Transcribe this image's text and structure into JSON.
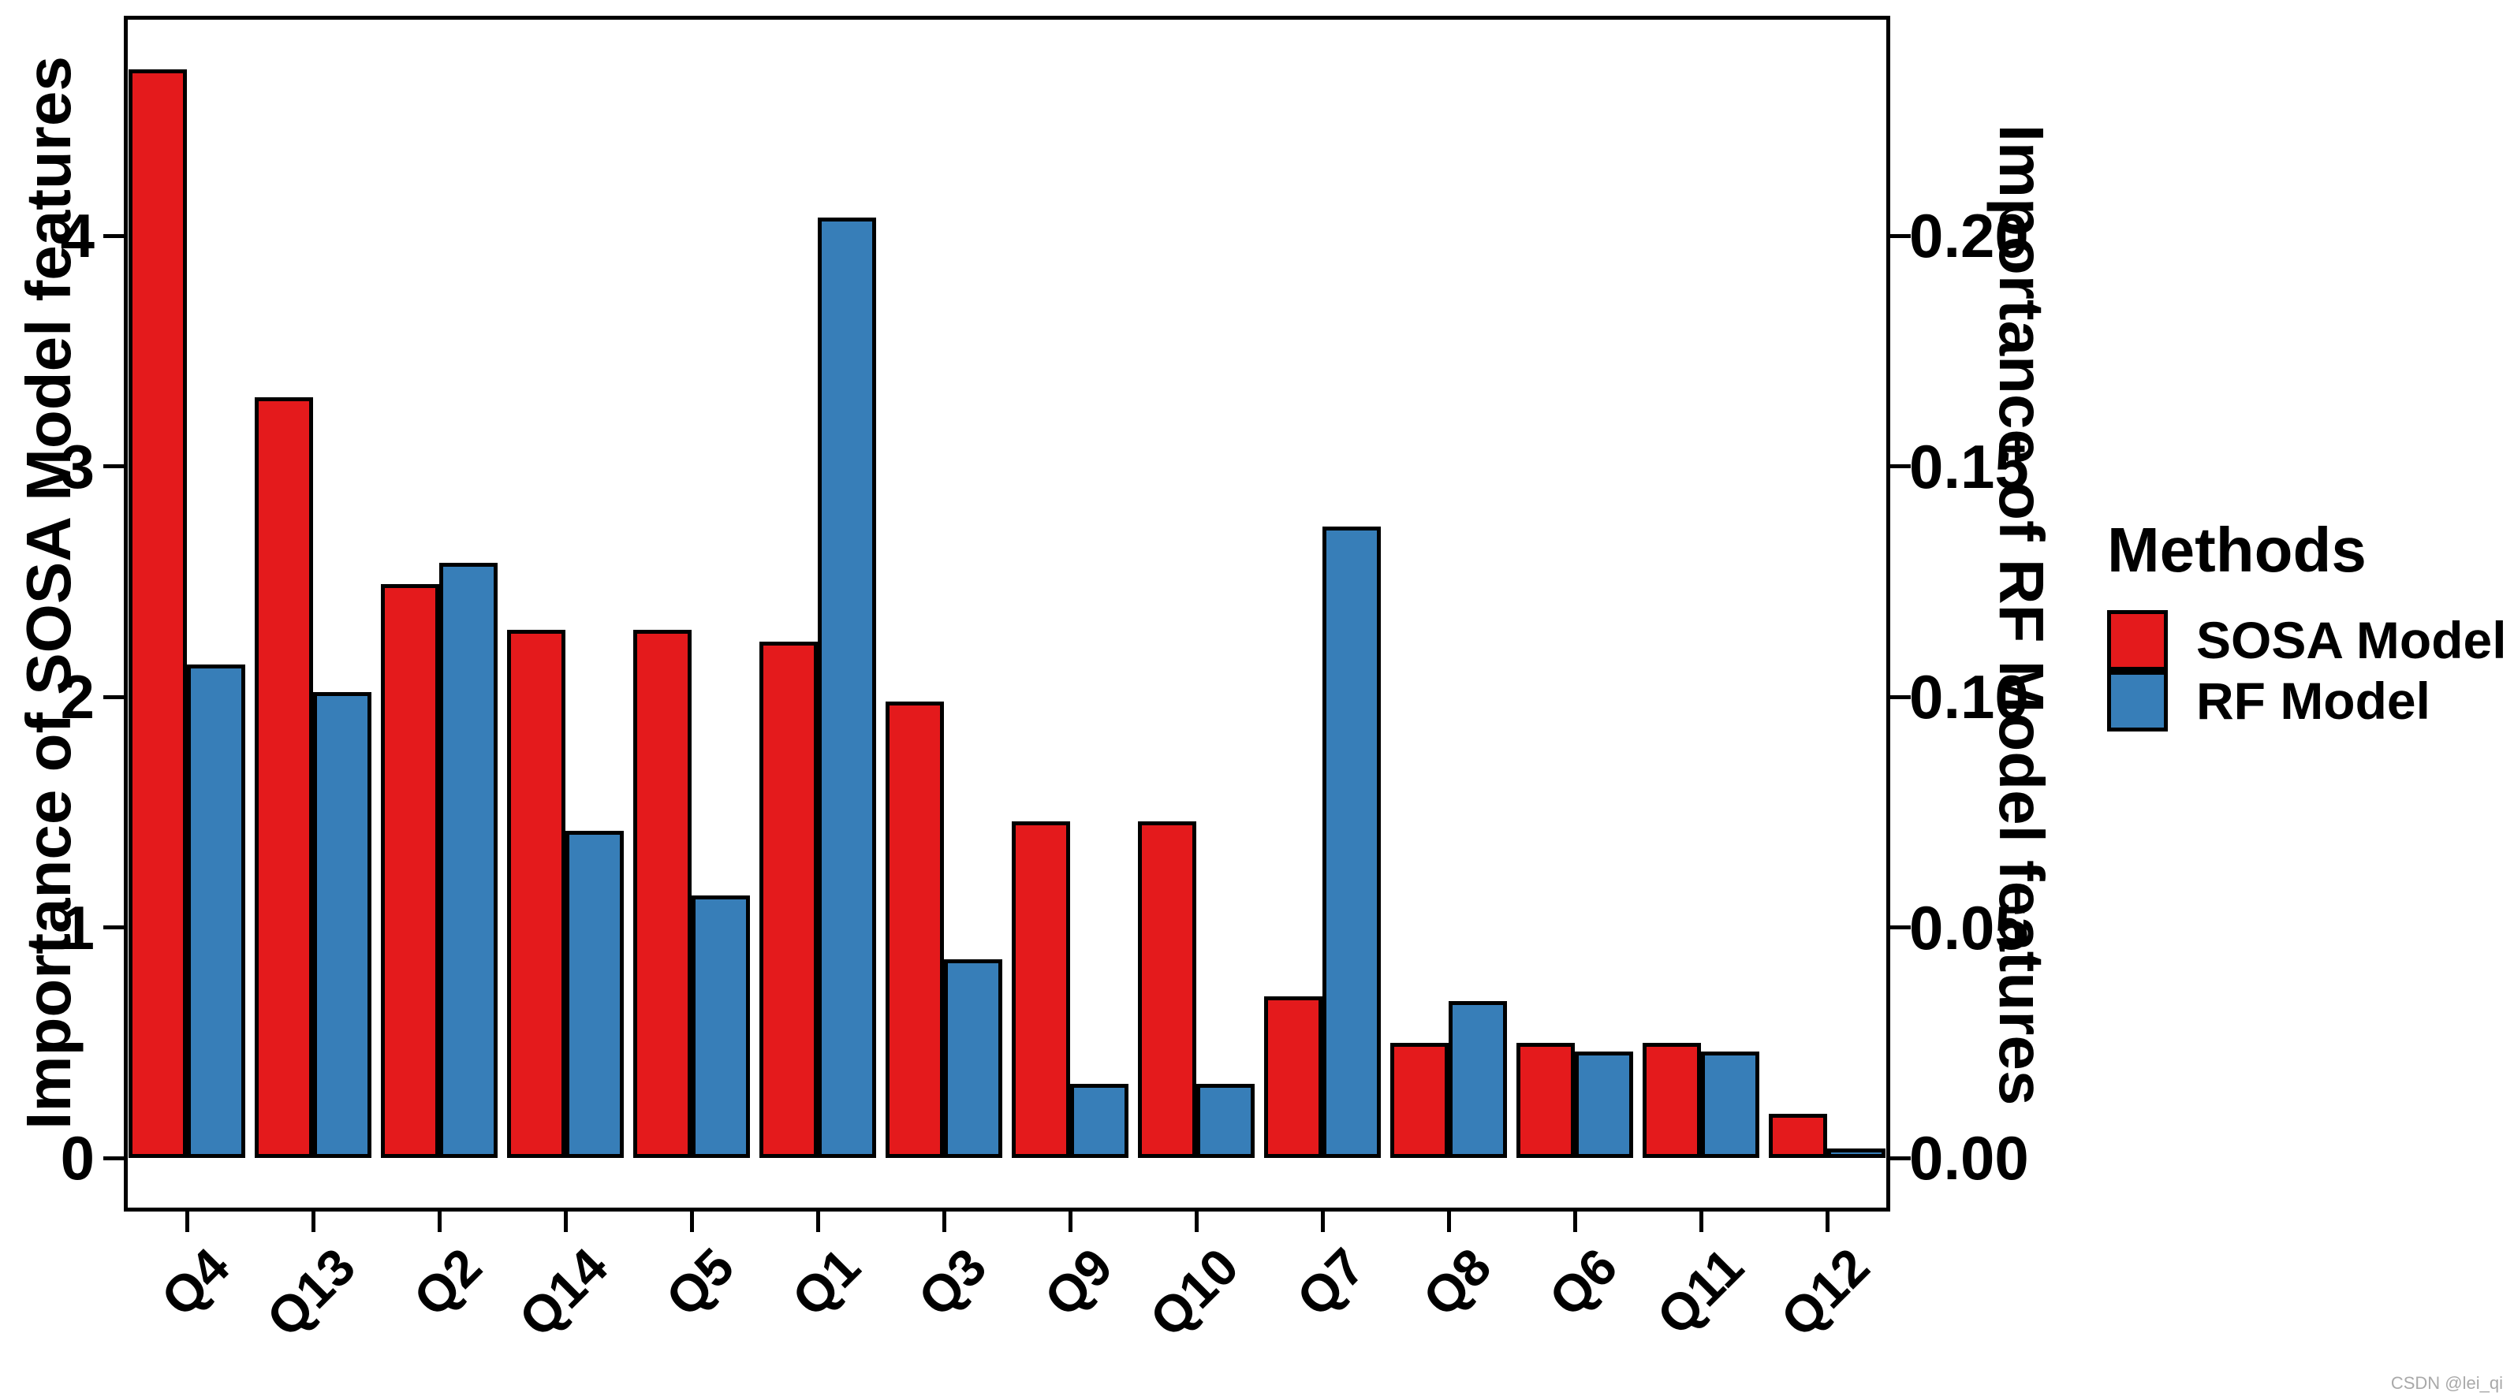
{
  "page": {
    "background": "#FFFFFF",
    "watermark": "CSDN @lei_qi"
  },
  "chart_data": {
    "type": "bar",
    "categories": [
      "Q4",
      "Q13",
      "Q2",
      "Q14",
      "Q5",
      "Q1",
      "Q3",
      "Q9",
      "Q10",
      "Q7",
      "Q8",
      "Q6",
      "Q11",
      "Q12"
    ],
    "series": [
      {
        "name": "SOSA Model",
        "axis": "left",
        "color": "#E41A1C",
        "values": [
          4.72,
          3.3,
          2.49,
          2.29,
          2.29,
          2.24,
          1.98,
          1.46,
          1.46,
          0.7,
          0.5,
          0.5,
          0.5,
          0.19
        ]
      },
      {
        "name": "RF Model",
        "axis": "right",
        "color": "#377EB8",
        "values": [
          0.107,
          0.101,
          0.129,
          0.071,
          0.057,
          0.204,
          0.043,
          0.016,
          0.016,
          0.137,
          0.034,
          0.023,
          0.023,
          0.002
        ]
      }
    ],
    "bar_border_color": "#000000",
    "left_axis": {
      "label": "Importance of SOSA Model features",
      "ticks": [
        "0",
        "1",
        "2",
        "3",
        "4"
      ],
      "range": [
        0,
        4.95
      ]
    },
    "right_axis": {
      "label": "Importance of RF Model features",
      "ticks": [
        "0.00",
        "0.05",
        "0.10",
        "0.15",
        "0.20"
      ],
      "range": [
        0,
        0.2475
      ]
    },
    "legend": {
      "title": "Methods",
      "position": "right",
      "items": [
        {
          "label": "SOSA Model",
          "color": "#E41A1C"
        },
        {
          "label": "RF Model",
          "color": "#377EB8"
        }
      ]
    },
    "grid": false
  }
}
